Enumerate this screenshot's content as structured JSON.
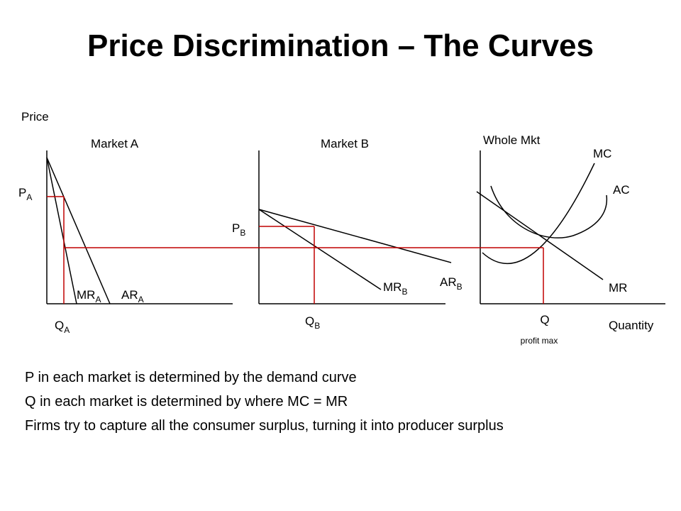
{
  "title": "Price Discrimination – The Curves",
  "diagram": {
    "price_axis": "Price",
    "quantity_axis": "Quantity",
    "market_a": {
      "label": "Market A",
      "price": "P",
      "price_sub": "A",
      "quantity": "Q",
      "quantity_sub": "A",
      "mr": "MR",
      "mr_sub": "A",
      "ar": "AR",
      "ar_sub": "A"
    },
    "market_b": {
      "label": "Market B",
      "price": "P",
      "price_sub": "B",
      "quantity": "Q",
      "quantity_sub": "B",
      "mr": "MR",
      "mr_sub": "B",
      "ar": "AR",
      "ar_sub": "B"
    },
    "whole_market": {
      "label": "Whole Mkt",
      "mc": "MC",
      "ac": "AC",
      "mr": "MR",
      "quantity": "Q",
      "quantity_note": "profit max"
    },
    "colors": {
      "curves": "#000000",
      "guides": "#c00000"
    }
  },
  "bullets": [
    "P in each market is determined by the demand curve",
    "Q in each market is determined by where MC = MR",
    "Firms try to capture all the consumer surplus, turning it into producer surplus"
  ]
}
